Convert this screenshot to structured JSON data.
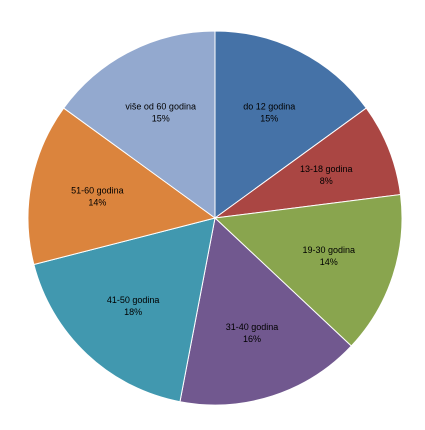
{
  "chart_data": {
    "type": "pie",
    "title": "",
    "legend": "none",
    "slices": [
      {
        "label": "do 12 godina",
        "percent_label": "15%",
        "value": 15,
        "color": "#4572a7"
      },
      {
        "label": "13-18 godina",
        "percent_label": "8%",
        "value": 8,
        "color": "#aa4643"
      },
      {
        "label": "19-30 godina",
        "percent_label": "14%",
        "value": 14,
        "color": "#89a54e"
      },
      {
        "label": "31-40 godina",
        "percent_label": "16%",
        "value": 16,
        "color": "#71588f"
      },
      {
        "label": "41-50 godina",
        "percent_label": "18%",
        "value": 18,
        "color": "#4198af"
      },
      {
        "label": "51-60 godina",
        "percent_label": "14%",
        "value": 14,
        "color": "#db843d"
      },
      {
        "label": "više od 60 godina",
        "percent_label": "15%",
        "value": 15,
        "color": "#93a9cf"
      }
    ]
  }
}
